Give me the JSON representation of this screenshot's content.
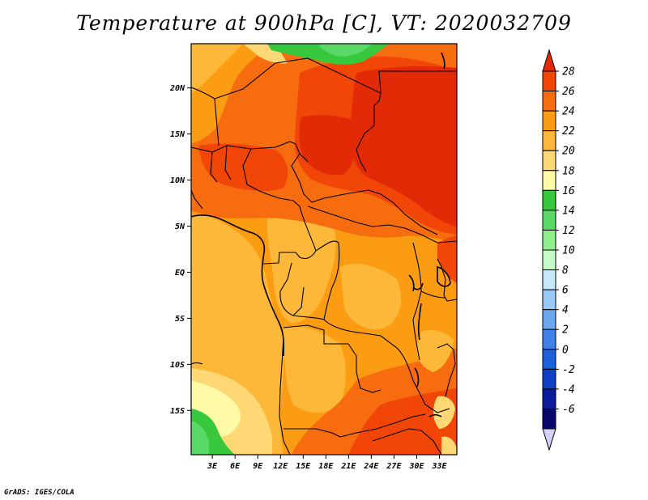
{
  "title": "Temperature at 900hPa [C], VT: 2020032709",
  "credit": "GrADS: IGES/COLA",
  "map": {
    "lat_ticks": [
      "20N",
      "15N",
      "10N",
      "5N",
      "EQ",
      "5S",
      "10S",
      "15S"
    ],
    "lat_values": [
      20,
      15,
      10,
      5,
      0,
      -5,
      -10,
      -15
    ],
    "lon_ticks": [
      "3E",
      "6E",
      "9E",
      "12E",
      "15E",
      "18E",
      "21E",
      "24E",
      "27E",
      "30E",
      "33E"
    ],
    "lon_values": [
      3,
      6,
      9,
      12,
      15,
      18,
      21,
      24,
      27,
      30,
      33
    ],
    "lat_range": [
      -19.8,
      24.8
    ],
    "lon_range": [
      0.2,
      35.3
    ]
  },
  "colorbar": {
    "labels": [
      "28",
      "26",
      "24",
      "22",
      "20",
      "18",
      "16",
      "14",
      "12",
      "10",
      "8",
      "6",
      "4",
      "2",
      "0",
      "-2",
      "-4",
      "-6"
    ],
    "colors": [
      "#e22a06",
      "#f24508",
      "#f76c0f",
      "#fb9c12",
      "#fdb83a",
      "#fed874",
      "#fefaa6",
      "#37c83d",
      "#5ad968",
      "#8ef08e",
      "#c4fbc7",
      "#c5e8fb",
      "#98c9f7",
      "#6aa7ee",
      "#3f82ea",
      "#1e60dc",
      "#0e3fc7",
      "#0a1d9a",
      "#08076a",
      "#d5d1fd"
    ]
  }
}
